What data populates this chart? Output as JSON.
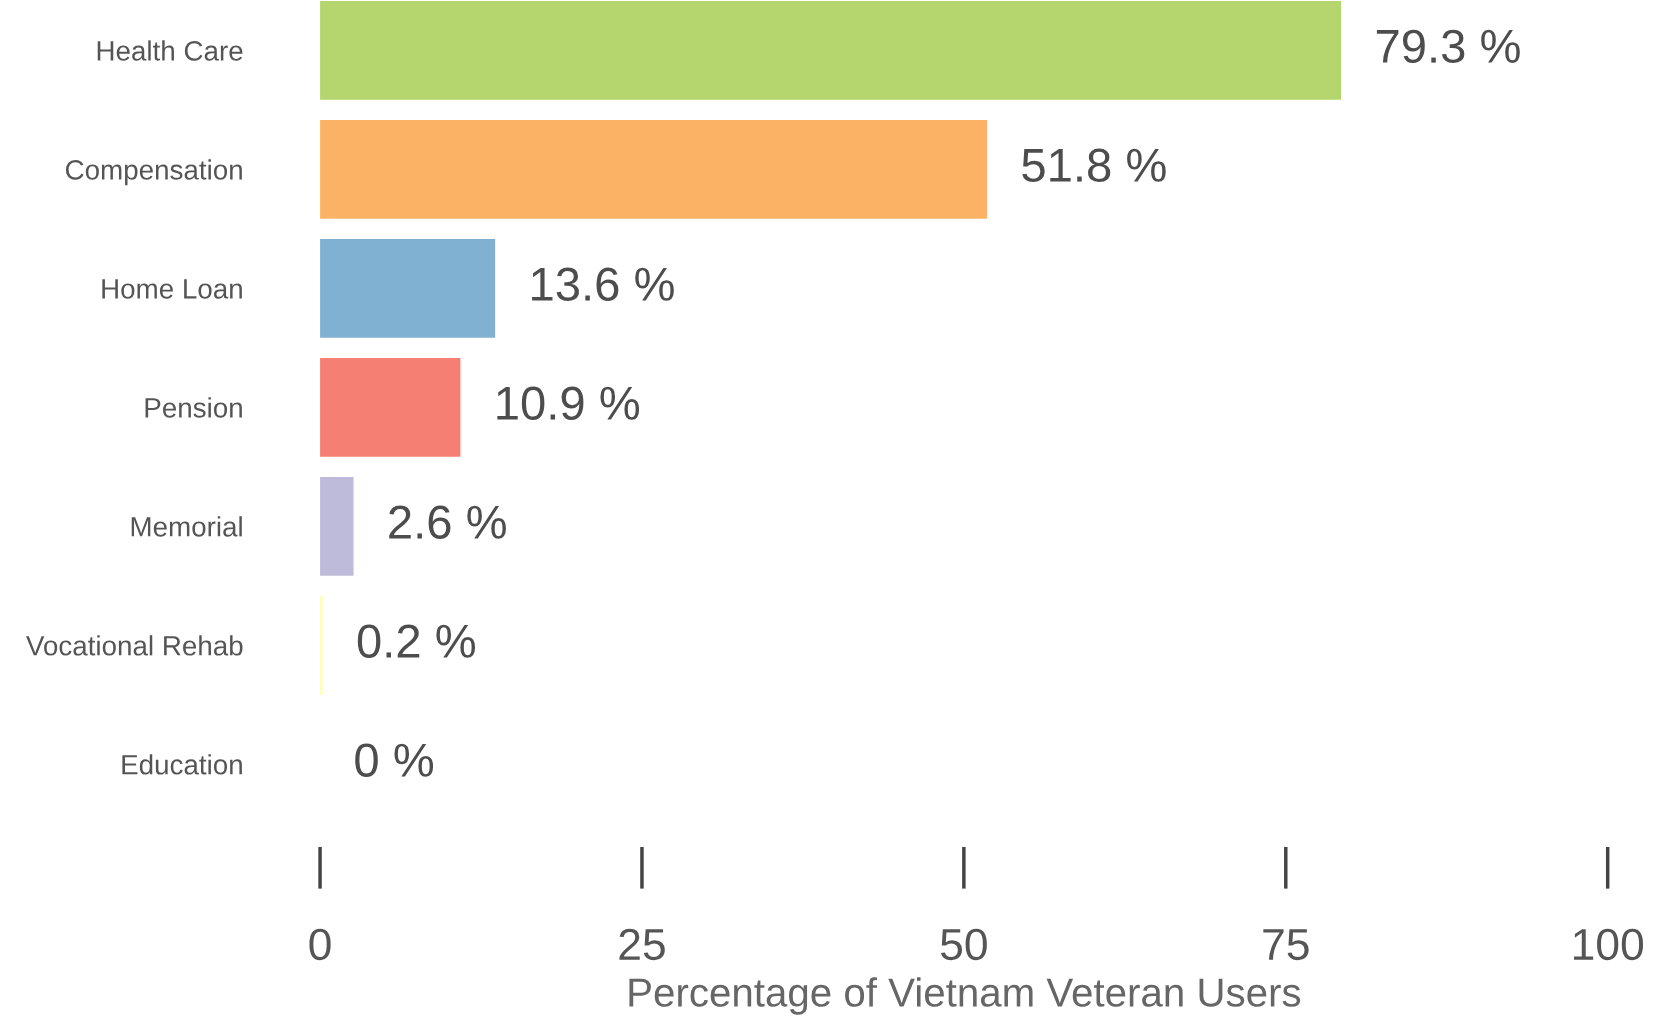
{
  "chart_data": {
    "type": "bar",
    "orientation": "horizontal",
    "xlabel": "Percentage of Vietnam Veteran Users",
    "categories": [
      "Health Care",
      "Compensation",
      "Home Loan",
      "Pension",
      "Memorial",
      "Vocational Rehab",
      "Education"
    ],
    "values": [
      79.3,
      51.8,
      13.6,
      10.9,
      2.6,
      0.2,
      0
    ],
    "colors": [
      "#b5d66e",
      "#fbb264",
      "#80b1d3",
      "#f47f72",
      "#bebada",
      "#ffffb3",
      "#8dd3c7"
    ],
    "value_labels": [
      "79.3 %",
      "51.8 %",
      "13.6 %",
      "10.9 %",
      "2.6 %",
      "0.2 %",
      "0 %"
    ],
    "xlim": [
      0,
      100
    ],
    "xticks": [
      0,
      25,
      50,
      75,
      100
    ],
    "grid": false,
    "legend": false
  }
}
